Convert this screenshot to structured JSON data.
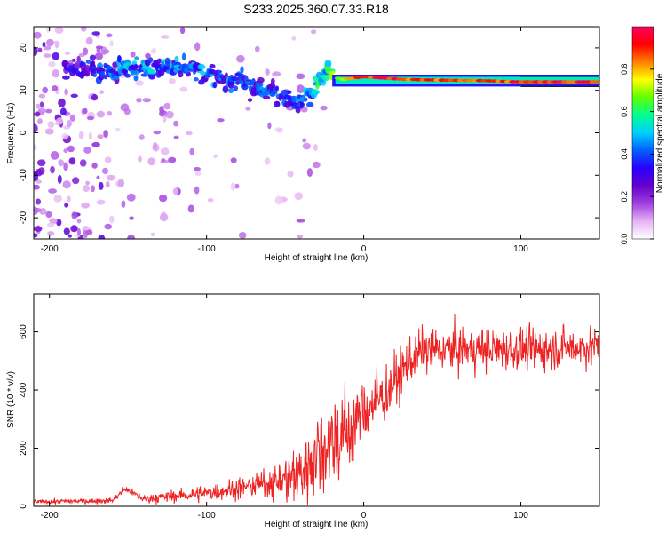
{
  "title": "S233.2025.360.07.33.R18",
  "colors": {
    "snr_line": "#ee2222",
    "axis": "#000000",
    "colormap": [
      "#ffffff",
      "#e6b3f5",
      "#a040e0",
      "#6600cc",
      "#2a00ff",
      "#0060ff",
      "#00cfff",
      "#00ff90",
      "#60ff00",
      "#ffff00",
      "#ff8000",
      "#ff0000",
      "#ff0060"
    ]
  },
  "chart_data": [
    {
      "type": "heatmap",
      "xlabel": "Height of straight line (km)",
      "ylabel": "Frequency (Hz)",
      "xlim": [
        -210,
        150
      ],
      "ylim": [
        -25,
        25
      ],
      "xticks": [
        -200,
        -100,
        0,
        100
      ],
      "xtick_labels": [
        "-200",
        "-100",
        "0",
        "100"
      ],
      "yticks": [
        -20,
        -10,
        0,
        10,
        20
      ],
      "ytick_labels": [
        "-20",
        "-10",
        "0",
        "10",
        "20"
      ],
      "colorbar": {
        "label": "Normalized spectral amplitude",
        "range": [
          0,
          1
        ],
        "ticks": [
          0.0,
          0.2,
          0.4,
          0.6,
          0.8
        ],
        "tick_labels": [
          "0.0",
          "0.2",
          "0.4",
          "0.6",
          "0.8"
        ]
      },
      "ridge": {
        "description_points": [
          {
            "x": -185,
            "freq": 15
          },
          {
            "x": -160,
            "freq": 14.5
          },
          {
            "x": -140,
            "freq": 16
          },
          {
            "x": -120,
            "freq": 15.5
          },
          {
            "x": -100,
            "freq": 14
          },
          {
            "x": -80,
            "freq": 12
          },
          {
            "x": -60,
            "freq": 10
          },
          {
            "x": -40,
            "freq": 7
          },
          {
            "x": -22,
            "freq": 15
          },
          {
            "x": -15,
            "freq": 12.5
          },
          {
            "x": 0,
            "freq": 13.2
          },
          {
            "x": 25,
            "freq": 12.6
          },
          {
            "x": 50,
            "freq": 12.4
          },
          {
            "x": 75,
            "freq": 12.3
          },
          {
            "x": 100,
            "freq": 12
          },
          {
            "x": 150,
            "freq": 12
          }
        ],
        "intensity": [
          {
            "x": -185,
            "value": 0.3
          },
          {
            "x": -150,
            "value": 0.45
          },
          {
            "x": -120,
            "value": 0.45
          },
          {
            "x": -80,
            "value": 0.4
          },
          {
            "x": -40,
            "value": 0.38
          },
          {
            "x": -20,
            "value": 0.7
          },
          {
            "x": 0,
            "value": 0.95
          },
          {
            "x": 50,
            "value": 0.9
          },
          {
            "x": 100,
            "value": 0.95
          },
          {
            "x": 150,
            "value": 0.95
          }
        ]
      }
    },
    {
      "type": "line",
      "xlabel": "Height of straight line (km)",
      "ylabel": "SNR (10 * v/v)",
      "xlim": [
        -210,
        150
      ],
      "ylim": [
        0,
        730
      ],
      "xticks": [
        -200,
        -100,
        0,
        100
      ],
      "xtick_labels": [
        "-200",
        "-100",
        "0",
        "100"
      ],
      "yticks": [
        0,
        200,
        400,
        600
      ],
      "ytick_labels": [
        "0",
        "200",
        "400",
        "600"
      ],
      "series": [
        {
          "envelope_mean": [
            {
              "x": -210,
              "y": 15
            },
            {
              "x": -160,
              "y": 20
            },
            {
              "x": -152,
              "y": 60
            },
            {
              "x": -140,
              "y": 25
            },
            {
              "x": -100,
              "y": 45
            },
            {
              "x": -60,
              "y": 80
            },
            {
              "x": -40,
              "y": 110
            },
            {
              "x": -30,
              "y": 180
            },
            {
              "x": -20,
              "y": 230
            },
            {
              "x": -10,
              "y": 250
            },
            {
              "x": 0,
              "y": 330
            },
            {
              "x": 15,
              "y": 390
            },
            {
              "x": 25,
              "y": 470
            },
            {
              "x": 35,
              "y": 530
            },
            {
              "x": 50,
              "y": 540
            },
            {
              "x": 80,
              "y": 540
            },
            {
              "x": 110,
              "y": 540
            },
            {
              "x": 150,
              "y": 550
            }
          ],
          "noise_std": [
            {
              "x": -210,
              "y": 6
            },
            {
              "x": -160,
              "y": 8
            },
            {
              "x": -100,
              "y": 20
            },
            {
              "x": -60,
              "y": 35
            },
            {
              "x": -30,
              "y": 120
            },
            {
              "x": -15,
              "y": 140
            },
            {
              "x": 0,
              "y": 90
            },
            {
              "x": 30,
              "y": 60
            },
            {
              "x": 150,
              "y": 55
            }
          ]
        }
      ]
    }
  ]
}
